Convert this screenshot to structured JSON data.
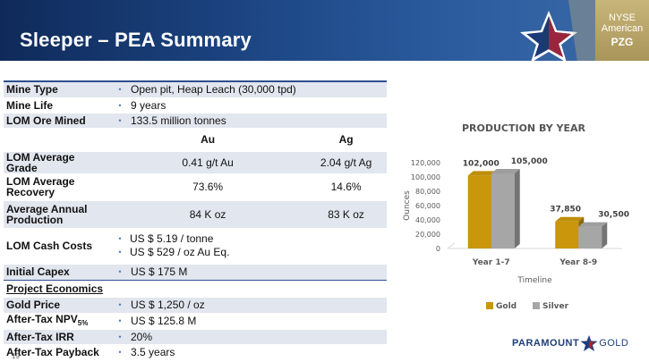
{
  "header": {
    "title": "Sleeper – PEA Summary",
    "exchange_line1": "NYSE",
    "exchange_line2": "American",
    "ticker": "PZG"
  },
  "table": {
    "mine_type": {
      "label": "Mine Type",
      "value": "Open pit, Heap Leach (30,000 tpd)"
    },
    "mine_life": {
      "label": "Mine Life",
      "value": "9 years"
    },
    "lom_ore": {
      "label": "LOM Ore Mined",
      "value": "133.5 million tonnes"
    },
    "col_au": "Au",
    "col_ag": "Ag",
    "avg_grade": {
      "label": "LOM Average Grade",
      "au": "0.41 g/t Au",
      "ag": "2.04 g/t Ag"
    },
    "avg_recovery": {
      "label": "LOM Average Recovery",
      "au": "73.6%",
      "ag": "14.6%"
    },
    "annual_prod": {
      "label": "Average Annual Production",
      "au": "84 K oz",
      "ag": "83 K oz"
    },
    "cash_costs": {
      "label": "LOM Cash Costs",
      "value1": "US $ 5.19 / tonne",
      "value2": "US $ 529 / oz Au Eq."
    },
    "capex": {
      "label": "Initial Capex",
      "value": "US $ 175 M"
    },
    "econ_header": "Project Economics",
    "gold_price": {
      "label": "Gold Price",
      "value": "US $ 1,250 / oz"
    },
    "npv": {
      "label": "After-Tax NPV",
      "sub": "5%",
      "value": "US $ 125.8 M"
    },
    "irr": {
      "label": "After-Tax IRR",
      "value": "20%"
    },
    "payback": {
      "label": "After-Tax Payback",
      "value": "3.5 years"
    }
  },
  "page_number": "19",
  "brand": {
    "word1": "PARAMOUNT",
    "word2": "GOLD"
  },
  "colors": {
    "header_dark": "#0f2a5a",
    "gold": "#c9960c",
    "silver": "#a6a6a6",
    "shade": "#e2e6ee"
  },
  "chart_data": {
    "type": "bar",
    "title": "PRODUCTION BY YEAR",
    "categories": [
      "Year 1-7",
      "Year 8-9"
    ],
    "series": [
      {
        "name": "Gold",
        "values": [
          102000,
          37850
        ],
        "labels": [
          "102,000",
          "37,850"
        ],
        "color": "#c9960c"
      },
      {
        "name": "Silver",
        "values": [
          105000,
          30500
        ],
        "labels": [
          "105,000",
          "30,500"
        ],
        "color": "#a6a6a6"
      }
    ],
    "xlabel": "Timeline",
    "ylabel": "Ounces",
    "ylim": [
      0,
      120000
    ],
    "yticks": [
      "0",
      "20,000",
      "40,000",
      "60,000",
      "80,000",
      "100,000",
      "120,000"
    ],
    "grid": false,
    "legend": "bottom",
    "style": "3d"
  }
}
